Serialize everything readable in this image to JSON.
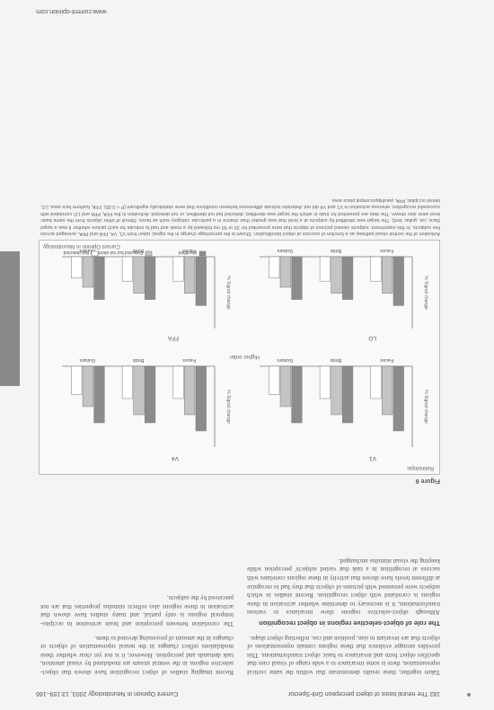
{
  "header": {
    "left": "182 The neural basis of object perception Grill-Spector",
    "right": "Current Opinion in Neurobiology 2003, 13:159–166",
    "website": "www.current-opinion.com"
  },
  "figure": {
    "label": "Figure 6",
    "credit": "Current Opinion in Neurobiology",
    "row_labels": [
      "Retinotopic",
      "Higher order"
    ],
    "region_labels": [
      "V1",
      "V4",
      "LO",
      "FFA",
      "PPA",
      "Faces"
    ],
    "ylabel": "% Signal change",
    "categories": [
      "Faces",
      "Birds",
      "Guitars",
      "Faces",
      "Birds",
      "Guitars"
    ],
    "legend": [
      "Identified",
      "Detected but not identified",
      "Not detected"
    ]
  },
  "chart_data": {
    "type": "bar",
    "categories": [
      "Faces",
      "Birds",
      "Guitars"
    ],
    "series": [
      {
        "name": "Identified",
        "values": [
          0.8,
          0.7,
          0.7
        ]
      },
      {
        "name": "Detected but not identified",
        "values": [
          0.6,
          0.6,
          0.5
        ]
      },
      {
        "name": "Not detected",
        "values": [
          0.4,
          0.4,
          0.35
        ]
      }
    ],
    "ylabel": "% Signal change",
    "ylim": [
      0,
      1.0
    ]
  },
  "caption": {
    "text": "Activation of the ventral visual pathway as a function of success at object identification. Shown is the percentage change in the signal, taken from V1, V4, FFA and PPA, averaged across five subjects. In this experiment, subjects viewed pictures of objects that were presented for 33 or 50 ms followed by a mask and had to indicate for each picture whether it was a target (face, car, guitar, bird). The target was identified by subjects at a level that was greater than chance in a particular category such as faces. Stimuli of other objects from the same basic level were also shown. The data are presented for trials in which the target was identified, detected but not identified, or not detected. Activation in the FFA, PPA and LO correlated with successful recognition, whereas activation in V1 and V4 did not. Asterisks indicate differences between conditions that were statistically significant (P < 0.05). FFA, fusiform face area; LO, lateral occipital; PPA, parahippocampal place area."
  },
  "body": {
    "left_col": [
      "Taken together, these results demonstrate that within the same cortical representation, there is some invariance to a wide range of visual cues that specifies object form and invariance to basic object transformations. This provides stronger evidence that these regions contain representations of objects that are invariant to size, position and cue, reflecting object shape.",
      "The role of object-selective regions in object recognition",
      "Although object-selective regions show invariance to various transformations, it is necessary to determine whether activation in these regions is correlated with object recognition. Recent studies in which subjects were presented with pictures of objects that they had to recognize at different levels have shown that activity in these regions correlates with success at recognition in a task that varied subjects' perception while keeping the visual stimulus unchanged."
    ],
    "right_col": [
      "Recent imaging studies of object recognition have shown that object-selective regions in the ventral stream are modulated by visual attention, task demands and perception. However, it is not yet clear whether these modulations reflect changes in the neural representation of objects or changes in the amount of processing devoted to them.",
      "The correlation between perception and brain activation in occipito-temporal regions is only partial, and many studies have shown that activation in these regions also reflects stimulus properties that are not perceived by the subjects."
    ]
  }
}
